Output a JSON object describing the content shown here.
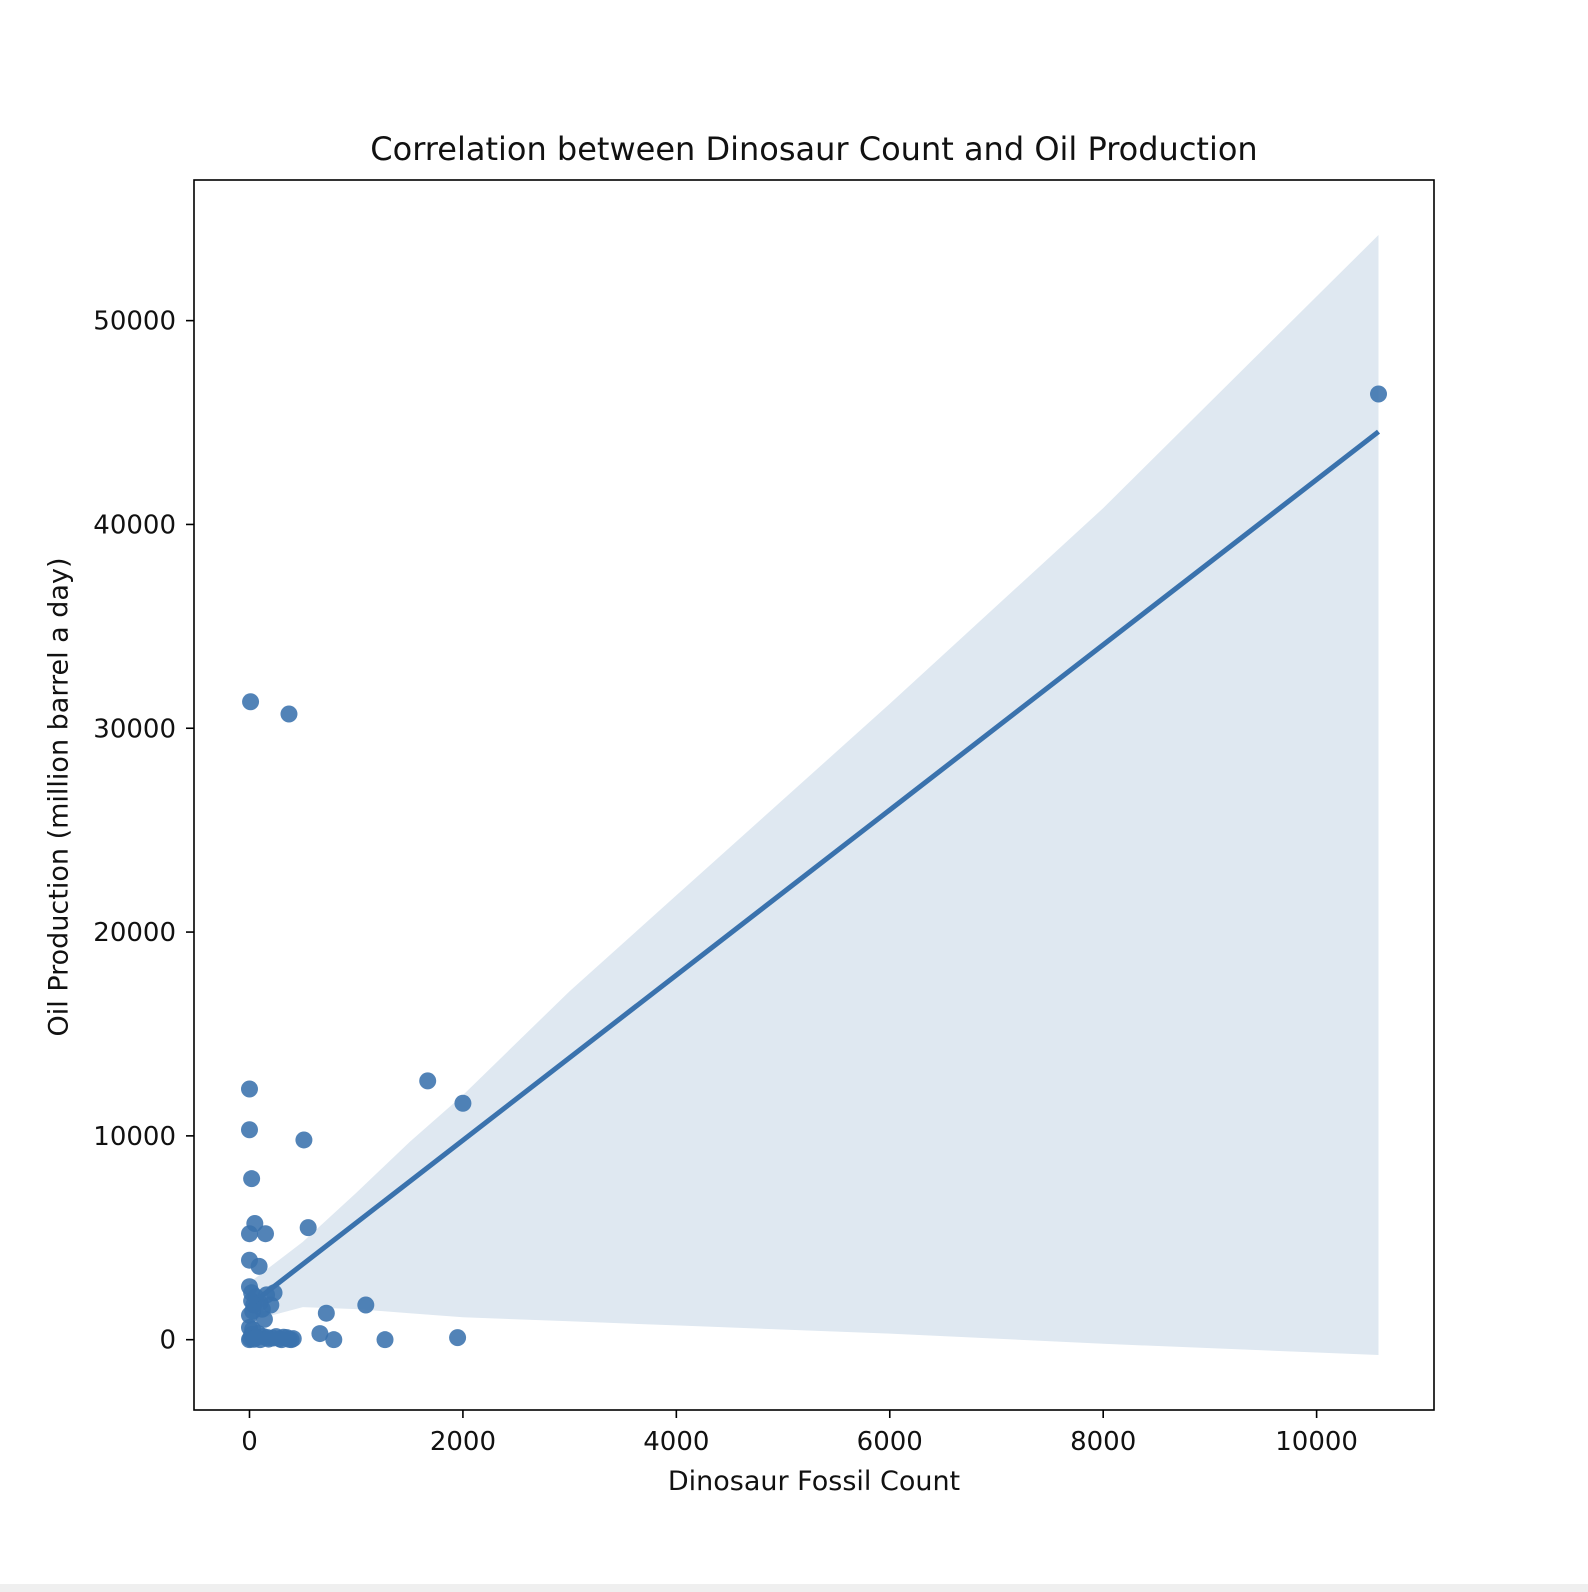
{
  "chart_data": {
    "type": "scatter",
    "title": "Correlation between Dinosaur Count and Oil Production",
    "xlabel": "Dinosaur Fossil Count",
    "ylabel": "Oil Production (million barrel a day)",
    "xlim": [
      -520,
      11100
    ],
    "ylim": [
      -3450,
      56900
    ],
    "xticks": [
      0,
      2000,
      4000,
      6000,
      8000,
      10000
    ],
    "yticks": [
      0,
      10000,
      20000,
      30000,
      40000,
      50000
    ],
    "grid": false,
    "legend": "none",
    "colors": {
      "points": "#3a72ad",
      "line": "#3a72ad",
      "band": "#dfe8f1",
      "frame": "#000000"
    },
    "series": [
      {
        "points": [
          [
            10580,
            46400
          ],
          [
            10,
            31300
          ],
          [
            370,
            30700
          ],
          [
            1670,
            12700
          ],
          [
            2000,
            11600
          ],
          [
            0,
            12300
          ],
          [
            0,
            10300
          ],
          [
            510,
            9800
          ],
          [
            20,
            7900
          ],
          [
            50,
            5700
          ],
          [
            0,
            5200
          ],
          [
            150,
            5200
          ],
          [
            550,
            5500
          ],
          [
            0,
            3900
          ],
          [
            90,
            3600
          ],
          [
            0,
            2600
          ],
          [
            20,
            2300
          ],
          [
            60,
            2100
          ],
          [
            230,
            2300
          ],
          [
            160,
            2200
          ],
          [
            20,
            1900
          ],
          [
            100,
            1800
          ],
          [
            40,
            1700
          ],
          [
            200,
            1700
          ],
          [
            120,
            1500
          ],
          [
            30,
            1400
          ],
          [
            0,
            1200
          ],
          [
            140,
            1000
          ],
          [
            720,
            1300
          ],
          [
            1090,
            1700
          ],
          [
            0,
            600
          ],
          [
            30,
            500
          ],
          [
            80,
            300
          ],
          [
            20,
            250
          ],
          [
            130,
            150
          ],
          [
            170,
            100
          ],
          [
            220,
            80
          ],
          [
            280,
            50
          ],
          [
            320,
            120
          ],
          [
            370,
            20
          ],
          [
            410,
            50
          ],
          [
            660,
            300
          ],
          [
            790,
            0
          ],
          [
            1270,
            0
          ],
          [
            1950,
            100
          ],
          [
            0,
            0
          ],
          [
            10,
            50
          ],
          [
            40,
            20
          ],
          [
            100,
            0
          ],
          [
            60,
            100
          ],
          [
            250,
            150
          ],
          [
            300,
            0
          ],
          [
            350,
            100
          ],
          [
            390,
            0
          ],
          [
            180,
            30
          ]
        ]
      }
    ],
    "regression": {
      "x": [
        0,
        10580
      ],
      "y": [
        1680,
        44550
      ]
    },
    "confidence_band": {
      "x": [
        0,
        500,
        1000,
        1500,
        2000,
        3000,
        4000,
        6000,
        8000,
        10580
      ],
      "upper": [
        2800,
        4800,
        7200,
        9700,
        12000,
        17100,
        21800,
        31200,
        40800,
        54200
      ],
      "lower": [
        900,
        1600,
        1500,
        1300,
        1100,
        900,
        700,
        300,
        -200,
        -750
      ]
    }
  }
}
